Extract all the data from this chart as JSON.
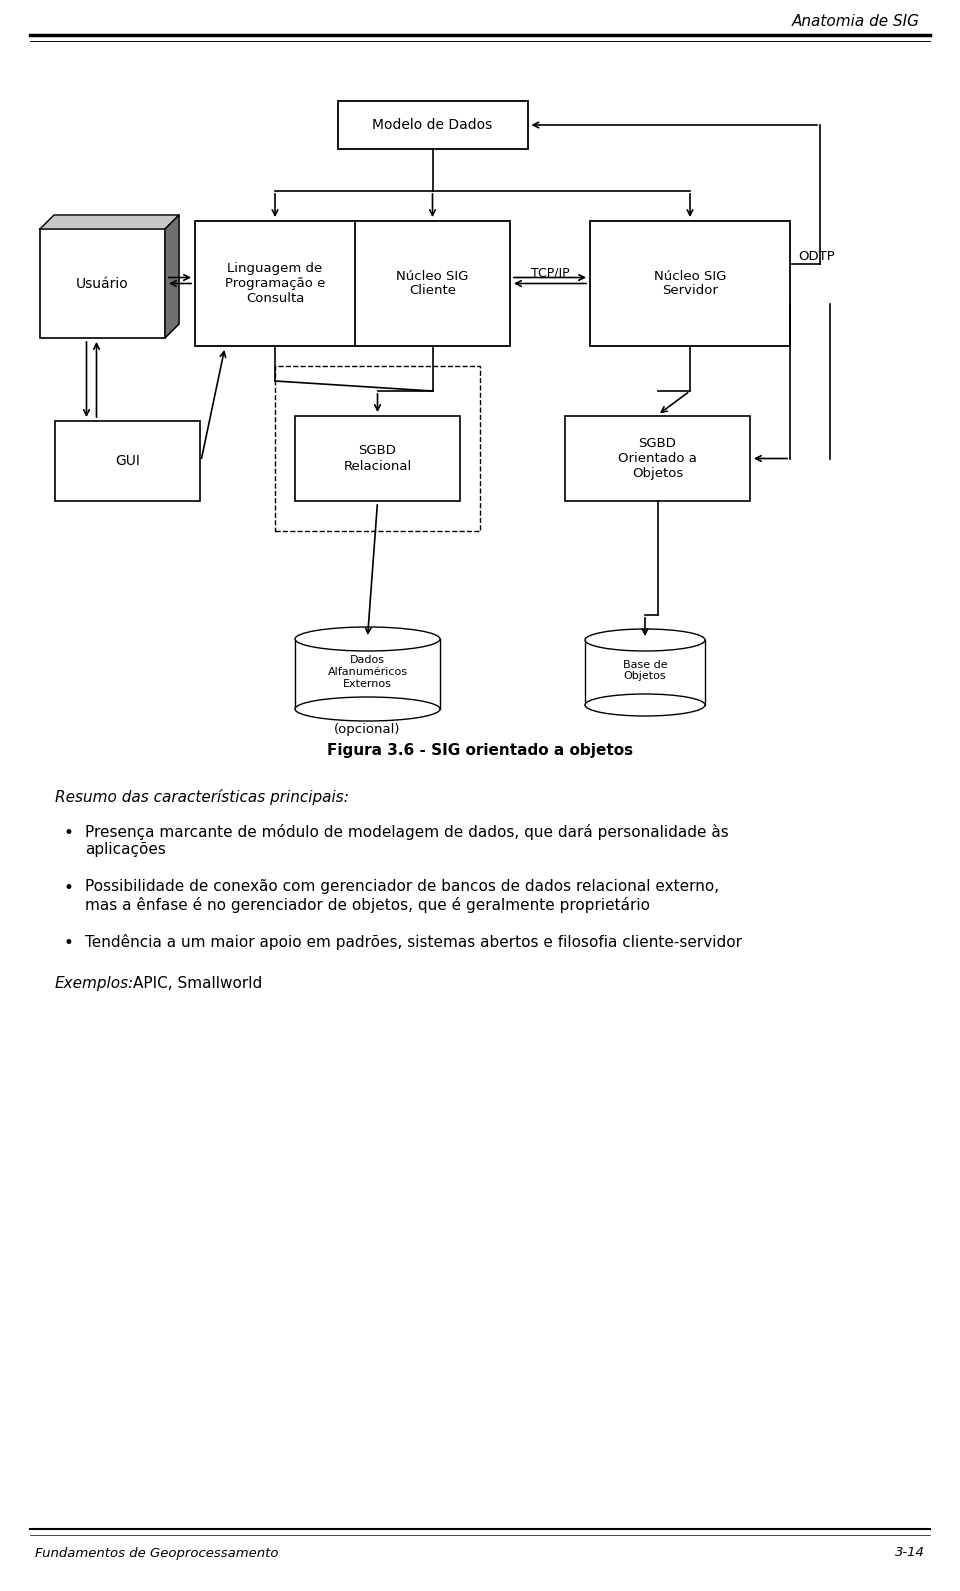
{
  "page_title": "Anatomia de SIG",
  "footer_left": "Fundamentos de Geoprocessamento",
  "footer_right": "3-14",
  "figure_caption": "Figura 3.6 - SIG orientado a objetos",
  "bg_color": "#ffffff",
  "text_color": "#000000"
}
